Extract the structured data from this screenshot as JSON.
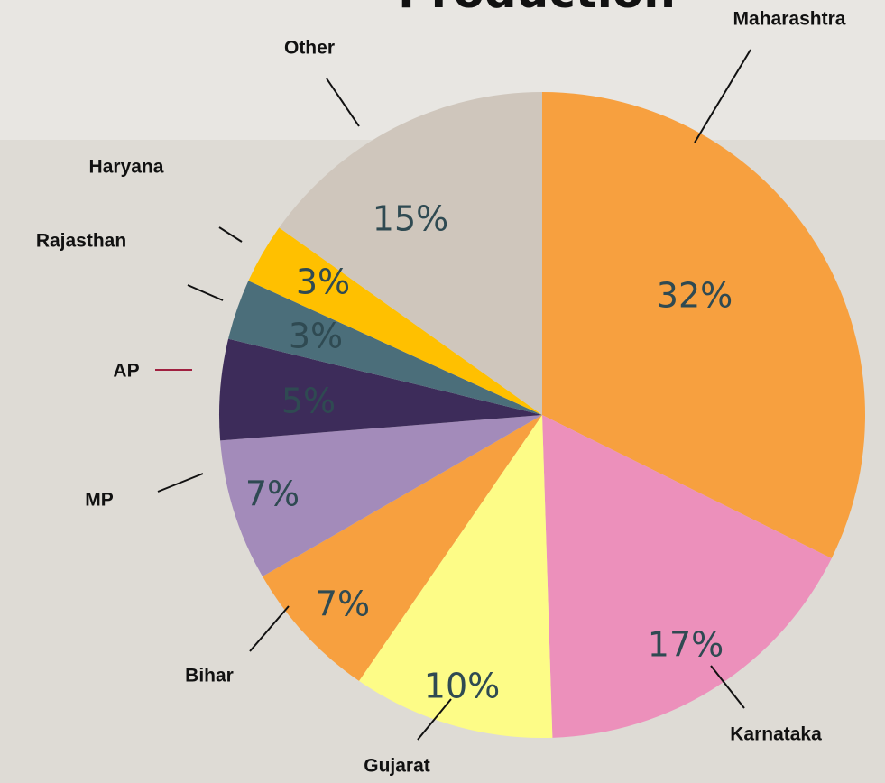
{
  "chart_data": {
    "type": "pie",
    "title": "Production",
    "categories": [
      "Maharashtra",
      "Karnataka",
      "Gujarat",
      "Bihar",
      "MP",
      "AP",
      "Rajasthan",
      "Haryana",
      "Other"
    ],
    "values": [
      32,
      17,
      10,
      7,
      7,
      5,
      3,
      3,
      15
    ],
    "value_labels": [
      "32%",
      "17%",
      "10%",
      "7%",
      "7%",
      "5%",
      "3%",
      "3%",
      "15%"
    ],
    "colors": [
      "#f7a03f",
      "#ec90bb",
      "#fdfc87",
      "#f7a03f",
      "#a38bba",
      "#3d2c5a",
      "#4b6e7a",
      "#ffc000",
      "#cfc6bc"
    ]
  }
}
